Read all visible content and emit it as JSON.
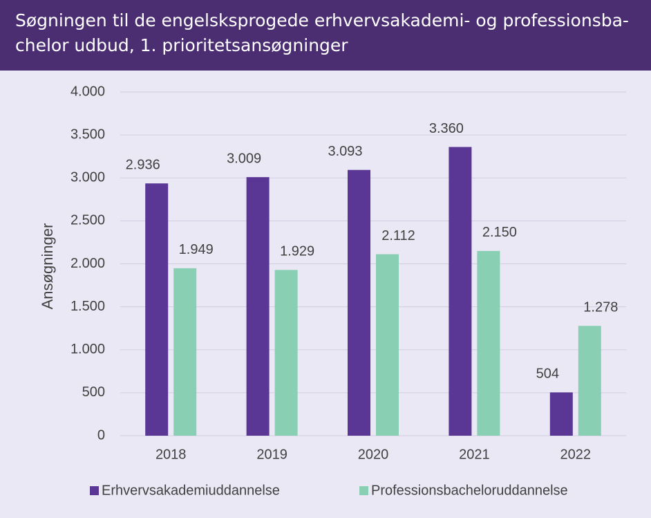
{
  "chart_data": {
    "type": "bar",
    "title": [
      "Søgningen til de engelsksprogede erhvervsakademi- og professionsba-",
      "chelor udbud, 1. prioritetsansøgninger"
    ],
    "y_label": "Ansøgninger",
    "categories": [
      "2018",
      "2019",
      "2020",
      "2021",
      "2022"
    ],
    "series": [
      {
        "name": "Erhvervsakademiuddannelse",
        "color": "#5a3794",
        "values": [
          2936,
          3009,
          3093,
          3360,
          504
        ],
        "value_labels": [
          "2.936",
          "3.009",
          "3.093",
          "3.360",
          "504"
        ]
      },
      {
        "name": "Professionsbacheloruddannelse",
        "color": "#88cfb3",
        "values": [
          1949,
          1929,
          2112,
          2150,
          1278
        ],
        "value_labels": [
          "1.949",
          "1.929",
          "2.112",
          "2.150",
          "1.278"
        ]
      }
    ],
    "ylim": [
      0,
      4000
    ],
    "yticks": [
      0,
      500,
      {
        "value": 1000,
        "label": "1.000"
      },
      {
        "value": 1500,
        "label": "1.500"
      },
      {
        "value": 2000,
        "label": "2.000"
      },
      {
        "value": 2500,
        "label": "2.500"
      },
      {
        "value": 3000,
        "label": "3.000"
      },
      {
        "value": 3500,
        "label": "3.500"
      },
      {
        "value": 4000,
        "label": "4.000"
      }
    ],
    "grid": true,
    "legend": "bottom"
  }
}
